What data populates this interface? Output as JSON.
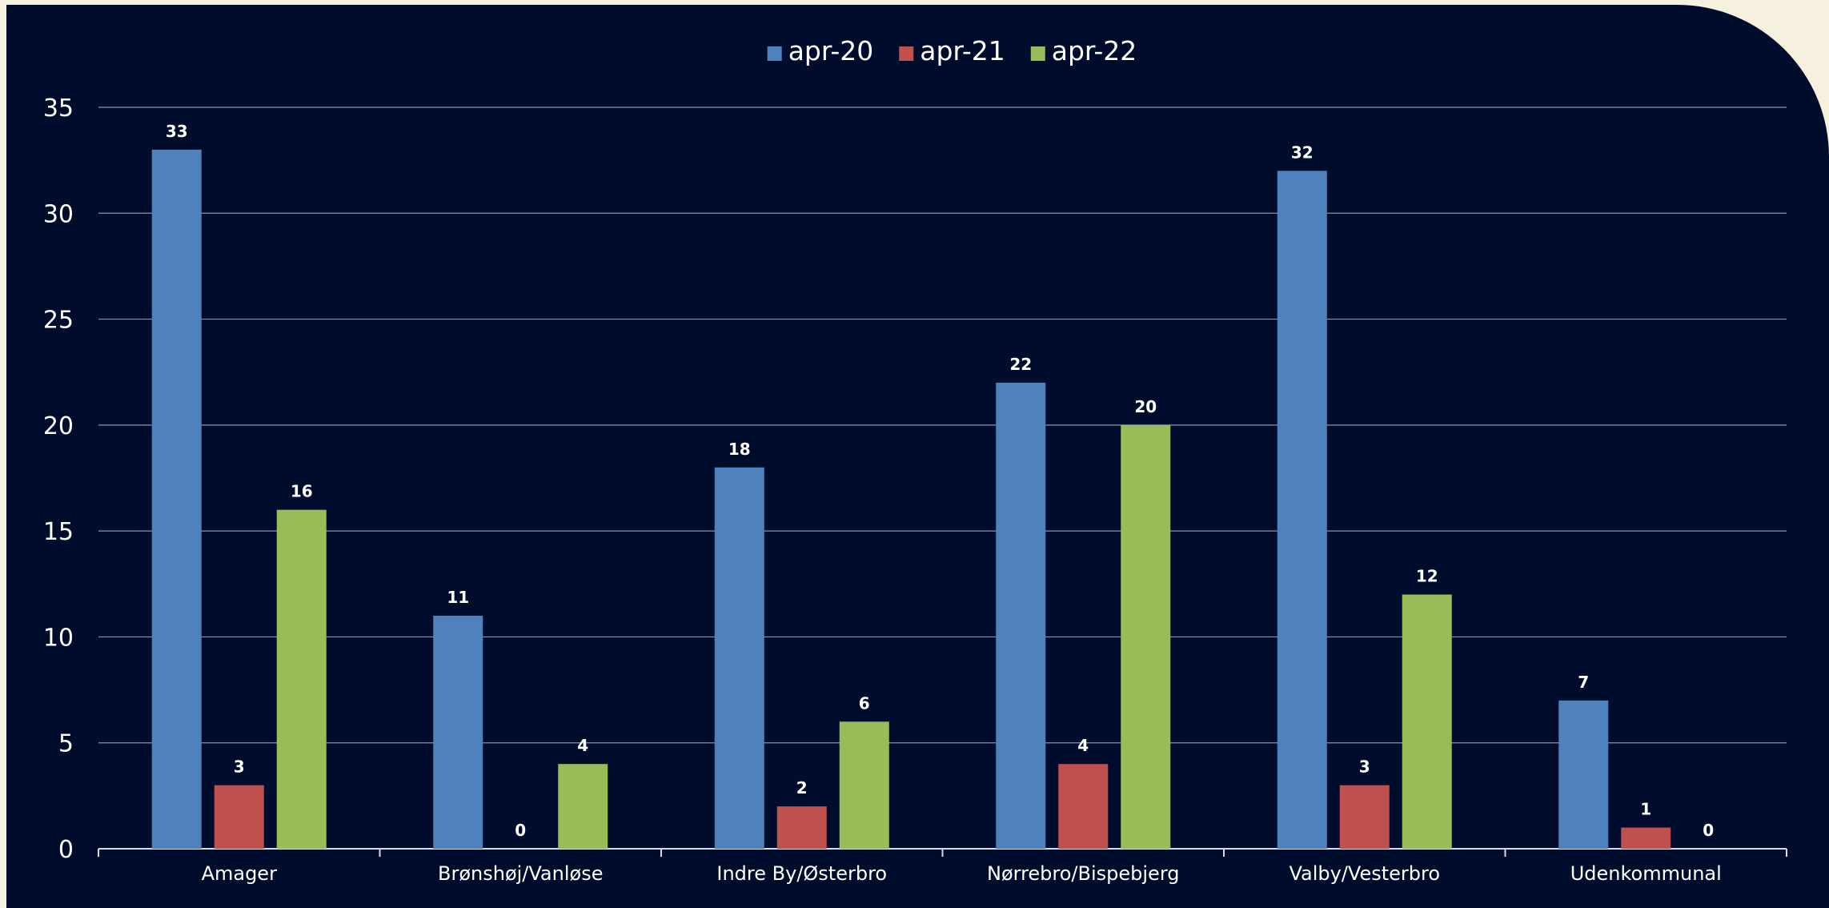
{
  "chart_data": {
    "type": "bar",
    "title": "",
    "xlabel": "",
    "ylabel": "",
    "categories": [
      "Amager",
      "Brønshøj/Vanløse",
      "Indre By/Østerbro",
      "Nørrebro/Bispebjerg",
      "Valby/Vesterbro",
      "Udenkommunal"
    ],
    "series": [
      {
        "name": "apr-20",
        "color": "#4f81bd",
        "values": [
          33,
          11,
          18,
          22,
          32,
          7
        ]
      },
      {
        "name": "apr-21",
        "color": "#c0504d",
        "values": [
          3,
          0,
          2,
          4,
          3,
          1
        ]
      },
      {
        "name": "apr-22",
        "color": "#9bbb59",
        "values": [
          16,
          4,
          6,
          20,
          12,
          0
        ]
      }
    ],
    "ylim": [
      0,
      35
    ],
    "yticks": [
      0,
      5,
      10,
      15,
      20,
      25,
      30,
      35
    ],
    "grid": true,
    "legend": "top-center",
    "data_labels": true,
    "background_color": "#000c2c",
    "page_color": "#f6f1df"
  }
}
